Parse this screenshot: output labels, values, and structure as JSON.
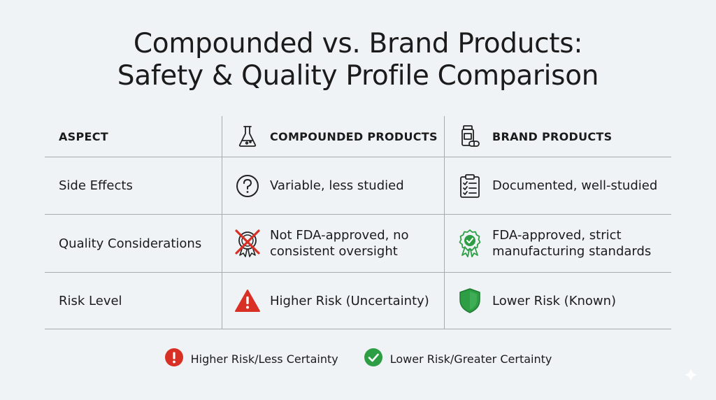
{
  "title": {
    "line1": "Compounded vs. Brand Products:",
    "line2": "Safety & Quality Profile Comparison"
  },
  "table": {
    "headers": {
      "aspect": "ASPECT",
      "compounded": "COMPOUNDED PRODUCTS",
      "brand": "BRAND PRODUCTS"
    },
    "header_icons": {
      "compounded": "flask-icon",
      "brand": "medicine-bottle-icon"
    },
    "rows": [
      {
        "aspect": "Side Effects",
        "compounded": "Variable, less studied",
        "compounded_icon": "question-circle-icon",
        "brand": "Documented, well-studied",
        "brand_icon": "clipboard-checklist-icon"
      },
      {
        "aspect": "Quality Considerations",
        "compounded_line1": "Not FDA-approved, no",
        "compounded_line2": "consistent oversight",
        "compounded_icon": "crossed-out-seal-icon",
        "brand_line1": "FDA-approved, strict",
        "brand_line2": "manufacturing standards",
        "brand_icon": "approved-seal-icon"
      },
      {
        "aspect": "Risk Level",
        "compounded": "Higher Risk (Uncertainty)",
        "compounded_icon": "warning-triangle-icon",
        "brand": "Lower Risk (Known)",
        "brand_icon": "shield-icon"
      }
    ]
  },
  "legend": [
    {
      "icon": "exclamation-circle-icon",
      "color": "#d93025",
      "label": "Higher Risk/Less Certainty"
    },
    {
      "icon": "check-circle-icon",
      "color": "#2e9e44",
      "label": "Lower Risk/Greater Certainty"
    }
  ],
  "colors": {
    "risk_red": "#d93025",
    "safe_green": "#2e9e44",
    "background": "#eff3f6",
    "grid": "#a7abae"
  }
}
